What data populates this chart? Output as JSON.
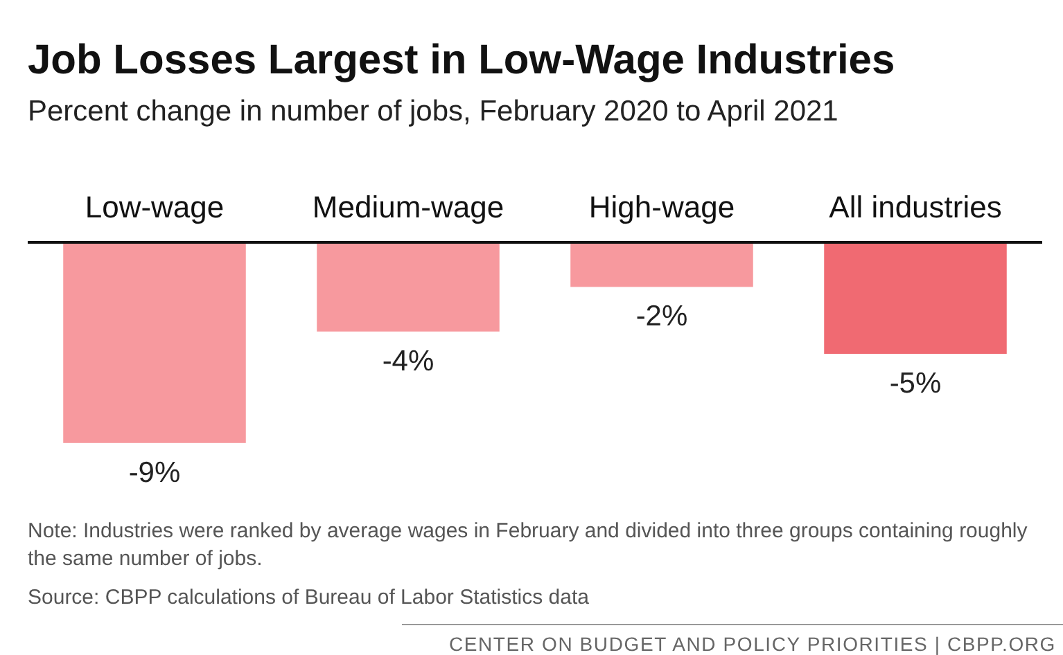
{
  "chart_data": {
    "type": "bar",
    "title": "Job Losses Largest in Low-Wage Industries",
    "subtitle": "Percent change in number of jobs, February 2020 to April 2021",
    "categories": [
      "Low-wage",
      "Medium-wage",
      "High-wage",
      "All industries"
    ],
    "values": [
      -9,
      -4,
      -2,
      -5
    ],
    "colors": [
      "#f7999e",
      "#f7999e",
      "#f7999e",
      "#f06a72"
    ],
    "value_labels": [
      "-9%",
      "-4%",
      "-2%",
      "-5%"
    ],
    "annotations": [
      "Note: Industries were ranked by average wages in February and divided into three groups containing roughly the same number of jobs.",
      "Source: CBPP calculations of Bureau of Labor Statistics data",
      "CENTER ON BUDGET AND POLICY PRIORITIES | CBPP.ORG"
    ]
  }
}
